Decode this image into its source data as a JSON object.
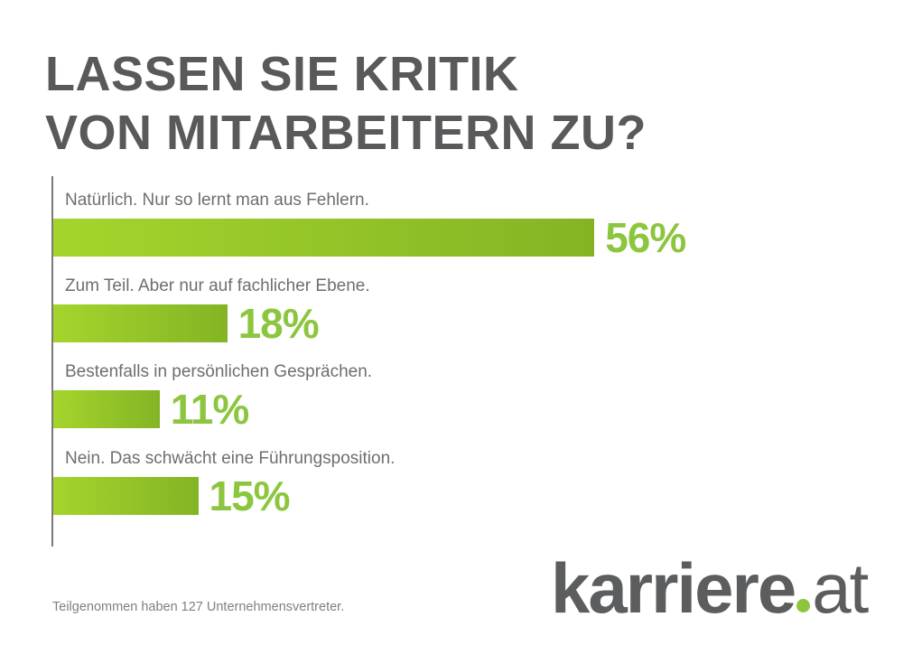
{
  "chart_data": {
    "type": "bar",
    "orientation": "horizontal",
    "title": [
      "LASSEN SIE KRITIK",
      "VON MITARBEITERN ZU?"
    ],
    "categories": [
      "Natürlich. Nur so lernt man aus Fehlern.",
      "Zum Teil. Aber nur auf fachlicher Ebene.",
      "Bestenfalls in persönlichen Gesprächen.",
      "Nein. Das schwächt eine Führungsposition."
    ],
    "values": [
      56,
      18,
      11,
      15
    ],
    "value_labels": [
      "56%",
      "18%",
      "11%",
      "15%"
    ],
    "unit": "%",
    "xlim": [
      0,
      100
    ],
    "colors": {
      "bar_start": "#a4d52c",
      "bar_end": "#84b424",
      "value": "#8cc63f",
      "title": "#58595b"
    }
  },
  "footer": "Teilgenommen haben 127 Unternehmensvertreter.",
  "logo": {
    "name": "karriere",
    "tld": "at"
  }
}
